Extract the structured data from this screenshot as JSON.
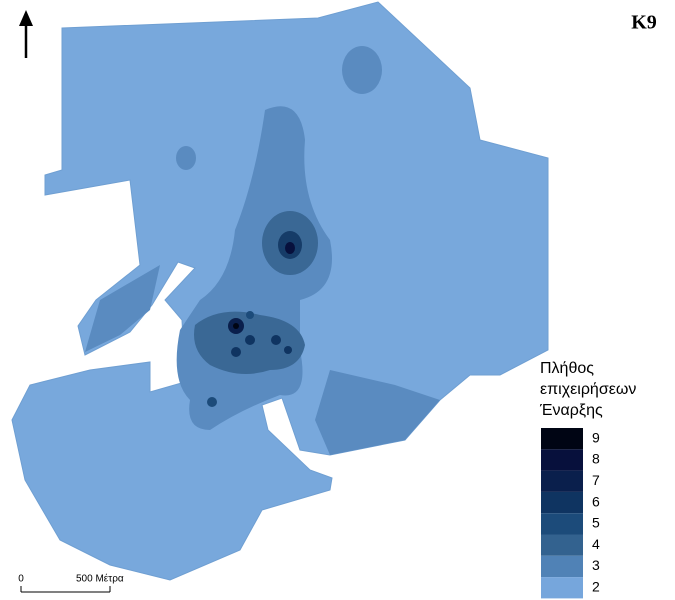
{
  "map_label": "K9",
  "legend": {
    "title_lines": [
      "Πλήθος",
      "επιχειρήσεων",
      "Έναρξης"
    ],
    "items": [
      {
        "value": 9,
        "color": "#000514"
      },
      {
        "value": 8,
        "color": "#07103c"
      },
      {
        "value": 7,
        "color": "#0a1f4c"
      },
      {
        "value": 6,
        "color": "#0f3461"
      },
      {
        "value": 5,
        "color": "#1c4b7a"
      },
      {
        "value": 4,
        "color": "#33628f"
      },
      {
        "value": 3,
        "color": "#5082b6"
      },
      {
        "value": 2,
        "color": "#76a6dc"
      }
    ]
  },
  "scale_bar": {
    "start": "0",
    "end": "500 Μέτρα"
  }
}
